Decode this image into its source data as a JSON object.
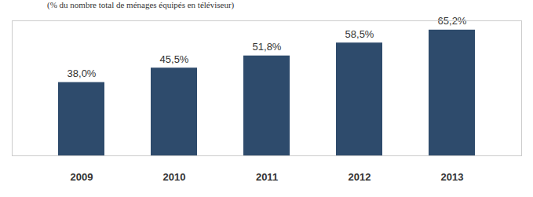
{
  "chart_data": {
    "type": "bar",
    "title": "(% du nombre total de ménages équipés en téléviseur)",
    "categories": [
      "2009",
      "2010",
      "2011",
      "2012",
      "2013"
    ],
    "values": [
      38.0,
      45.5,
      51.8,
      58.5,
      65.2
    ],
    "value_labels": [
      "38,0%",
      "45,5%",
      "51,8%",
      "58,5%",
      "65,2%"
    ],
    "color": "#2e4b6c",
    "ylim": [
      0,
      70
    ],
    "grid": false,
    "data_labels": true,
    "tick_labels": "x"
  }
}
